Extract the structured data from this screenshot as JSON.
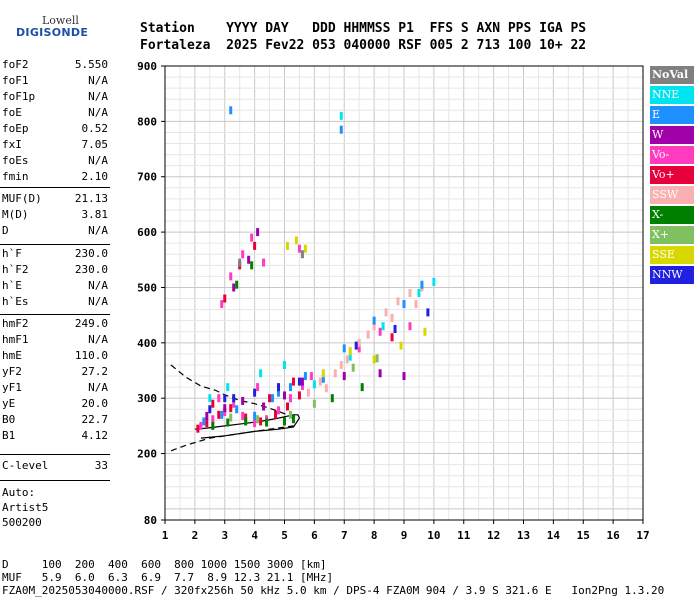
{
  "logo": {
    "line1": "Lowell",
    "line2": "DIGISONDE"
  },
  "header": {
    "line1": "Station    YYYY DAY   DDD HHMMSS P1  FFS S AXN PPS IGA PS",
    "line2": "Fortaleza  2025 Fev22 053 040000 RSF 005 2 713 100 10+ 22"
  },
  "params": {
    "group1": [
      {
        "name": "foF2",
        "value": "5.550"
      },
      {
        "name": "foF1",
        "value": "N/A"
      },
      {
        "name": "foF1p",
        "value": "N/A"
      },
      {
        "name": "foE",
        "value": "N/A"
      },
      {
        "name": "foEp",
        "value": "0.52"
      },
      {
        "name": "fxI",
        "value": "7.05"
      },
      {
        "name": "foEs",
        "value": "N/A"
      },
      {
        "name": "fmin",
        "value": "2.10"
      }
    ],
    "group2": [
      {
        "name": "MUF(D)",
        "value": "21.13"
      },
      {
        "name": "M(D)",
        "value": "3.81"
      },
      {
        "name": "D",
        "value": "N/A"
      }
    ],
    "group3": [
      {
        "name": "h`F",
        "value": "230.0"
      },
      {
        "name": "h`F2",
        "value": "230.0"
      },
      {
        "name": "h`E",
        "value": "N/A"
      },
      {
        "name": "h`Es",
        "value": "N/A"
      }
    ],
    "group4": [
      {
        "name": "hmF2",
        "value": "249.0"
      },
      {
        "name": "hmF1",
        "value": "N/A"
      },
      {
        "name": "hmE",
        "value": "110.0"
      },
      {
        "name": "yF2",
        "value": "27.2"
      },
      {
        "name": "yF1",
        "value": "N/A"
      },
      {
        "name": "yE",
        "value": "20.0"
      },
      {
        "name": "B0",
        "value": "22.7"
      },
      {
        "name": "B1",
        "value": "4.12"
      }
    ],
    "group5": [
      {
        "name": "C-level",
        "value": "33"
      }
    ],
    "auto": [
      "Auto:",
      "Artist5",
      "500200"
    ]
  },
  "legend": [
    {
      "label": "NoVal",
      "color": "#808080"
    },
    {
      "label": "NNE",
      "color": "#00e4f0"
    },
    {
      "label": "E",
      "color": "#1e90ff"
    },
    {
      "label": "W",
      "color": "#a000a8"
    },
    {
      "label": "Vo-",
      "color": "#ff3cc0"
    },
    {
      "label": "Vo+",
      "color": "#e8003c"
    },
    {
      "label": "SSW",
      "color": "#f8b0b0"
    },
    {
      "label": "X-",
      "color": "#008000"
    },
    {
      "label": "X+",
      "color": "#80c060"
    },
    {
      "label": "SSE",
      "color": "#d8d800"
    },
    {
      "label": "NNW",
      "color": "#2020e0"
    }
  ],
  "footer": {
    "line1": "D     100  200  400  600  800 1000 1500 3000 [km]",
    "line2": "MUF   5.9  6.0  6.3  6.9  7.7  8.9 12.3 21.1 [MHz]",
    "line3": "FZA0M_2025053040000.RSF / 320fx256h 50 kHz 5.0 km / DPS-4 FZA0M 904 / 3.9 S 321.6 E   Ion2Png 1.3.20"
  },
  "chart_data": {
    "type": "scatter",
    "xlim": [
      1,
      17
    ],
    "ylim": [
      80,
      900
    ],
    "x_ticks": [
      "1",
      "2",
      "3",
      "4",
      "5",
      "6",
      "7",
      "8",
      "9",
      "10",
      "11",
      "12",
      "13",
      "14",
      "15",
      "16",
      "17"
    ],
    "y_ticks": [
      "80",
      "200",
      "300",
      "400",
      "500",
      "600",
      "700",
      "800",
      "900"
    ],
    "grid": true,
    "series": [
      {
        "name": "Vo-",
        "color": "#ff3cc0",
        "points": [
          [
            2.2,
            250
          ],
          [
            2.6,
            262
          ],
          [
            3.0,
            275
          ],
          [
            3.3,
            290
          ],
          [
            3.6,
            268
          ],
          [
            4.0,
            255
          ],
          [
            4.4,
            262
          ],
          [
            4.8,
            278
          ],
          [
            5.2,
            300
          ],
          [
            5.6,
            322
          ],
          [
            2.9,
            470
          ],
          [
            3.2,
            520
          ],
          [
            3.6,
            560
          ],
          [
            3.9,
            590
          ],
          [
            4.3,
            545
          ],
          [
            5.5,
            570
          ],
          [
            7.5,
            390
          ],
          [
            8.2,
            420
          ],
          [
            9.2,
            430
          ],
          [
            2.8,
            300
          ],
          [
            4.1,
            320
          ],
          [
            5.9,
            340
          ]
        ]
      },
      {
        "name": "Vo+",
        "color": "#e8003c",
        "points": [
          [
            2.1,
            245
          ],
          [
            2.4,
            255
          ],
          [
            2.8,
            270
          ],
          [
            3.2,
            282
          ],
          [
            3.7,
            265
          ],
          [
            4.2,
            258
          ],
          [
            4.7,
            270
          ],
          [
            5.1,
            285
          ],
          [
            5.5,
            305
          ],
          [
            3.0,
            480
          ],
          [
            3.5,
            540
          ],
          [
            4.0,
            575
          ],
          [
            8.6,
            410
          ],
          [
            2.6,
            290
          ],
          [
            4.5,
            300
          ],
          [
            5.3,
            330
          ]
        ]
      },
      {
        "name": "SSW",
        "color": "#f8b0b0",
        "points": [
          [
            6.2,
            330
          ],
          [
            6.7,
            345
          ],
          [
            7.1,
            370
          ],
          [
            7.5,
            400
          ],
          [
            8.0,
            430
          ],
          [
            8.4,
            455
          ],
          [
            8.8,
            475
          ],
          [
            9.2,
            490
          ],
          [
            9.6,
            500
          ],
          [
            6.9,
            360
          ],
          [
            7.8,
            415
          ],
          [
            8.6,
            445
          ],
          [
            9.4,
            470
          ],
          [
            5.8,
            310
          ],
          [
            6.4,
            318
          ]
        ]
      },
      {
        "name": "E",
        "color": "#1e90ff",
        "points": [
          [
            2.3,
            258
          ],
          [
            2.9,
            270
          ],
          [
            3.4,
            280
          ],
          [
            4.0,
            268
          ],
          [
            4.6,
            300
          ],
          [
            5.2,
            320
          ],
          [
            5.7,
            340
          ],
          [
            6.3,
            335
          ],
          [
            7.0,
            390
          ],
          [
            8.0,
            440
          ],
          [
            9.0,
            470
          ],
          [
            9.6,
            505
          ],
          [
            6.9,
            785
          ],
          [
            3.2,
            820
          ],
          [
            4.8,
            310
          ]
        ]
      },
      {
        "name": "NNE",
        "color": "#00e4f0",
        "points": [
          [
            2.5,
            300
          ],
          [
            3.1,
            320
          ],
          [
            4.2,
            345
          ],
          [
            5.0,
            360
          ],
          [
            6.0,
            325
          ],
          [
            7.2,
            375
          ],
          [
            8.3,
            430
          ],
          [
            9.5,
            490
          ],
          [
            10.0,
            510
          ],
          [
            6.9,
            810
          ]
        ]
      },
      {
        "name": "W",
        "color": "#a000a8",
        "points": [
          [
            2.4,
            268
          ],
          [
            3.0,
            282
          ],
          [
            3.6,
            295
          ],
          [
            4.3,
            285
          ],
          [
            5.0,
            305
          ],
          [
            5.6,
            330
          ],
          [
            7.0,
            340
          ],
          [
            8.2,
            345
          ],
          [
            9.0,
            340
          ],
          [
            3.3,
            500
          ],
          [
            3.8,
            550
          ],
          [
            4.1,
            600
          ]
        ]
      },
      {
        "name": "X-",
        "color": "#008000",
        "points": [
          [
            2.6,
            250
          ],
          [
            3.1,
            256
          ],
          [
            3.7,
            258
          ],
          [
            4.4,
            256
          ],
          [
            5.0,
            258
          ],
          [
            5.3,
            262
          ],
          [
            6.6,
            300
          ],
          [
            7.6,
            320
          ],
          [
            3.4,
            505
          ],
          [
            3.9,
            540
          ]
        ]
      },
      {
        "name": "X+",
        "color": "#80c060",
        "points": [
          [
            3.2,
            265
          ],
          [
            4.1,
            262
          ],
          [
            5.2,
            270
          ],
          [
            6.0,
            290
          ],
          [
            7.3,
            355
          ],
          [
            8.1,
            372
          ]
        ]
      },
      {
        "name": "SSE",
        "color": "#d8d800",
        "points": [
          [
            5.1,
            575
          ],
          [
            5.4,
            585
          ],
          [
            5.7,
            570
          ],
          [
            7.2,
            385
          ],
          [
            8.0,
            370
          ],
          [
            8.9,
            395
          ],
          [
            9.7,
            420
          ],
          [
            6.3,
            345
          ]
        ]
      },
      {
        "name": "NNW",
        "color": "#2020e0",
        "points": [
          [
            2.5,
            280
          ],
          [
            3.3,
            300
          ],
          [
            4.0,
            310
          ],
          [
            4.8,
            320
          ],
          [
            5.5,
            330
          ],
          [
            7.4,
            395
          ],
          [
            8.7,
            425
          ],
          [
            9.8,
            455
          ],
          [
            3.0,
            300
          ]
        ]
      },
      {
        "name": "NoVal",
        "color": "#808080",
        "points": [
          [
            3.5,
            545
          ],
          [
            5.6,
            560
          ]
        ]
      }
    ],
    "trace_solid": [
      [
        2.2,
        228
      ],
      [
        3.0,
        232
      ],
      [
        4.0,
        240
      ],
      [
        4.8,
        244
      ],
      [
        5.3,
        248
      ],
      [
        5.4,
        256
      ],
      [
        5.5,
        264
      ],
      [
        5.45,
        270
      ],
      [
        5.3,
        270
      ],
      [
        4.8,
        264
      ],
      [
        4.2,
        258
      ],
      [
        3.6,
        254
      ],
      [
        3.0,
        250
      ],
      [
        2.4,
        246
      ],
      [
        2.0,
        244
      ]
    ],
    "trace_dashed": [
      [
        1.2,
        360
      ],
      [
        1.7,
        338
      ],
      [
        2.2,
        322
      ],
      [
        2.7,
        314
      ],
      [
        3.0,
        306
      ],
      [
        3.5,
        296
      ],
      [
        4.0,
        290
      ],
      [
        4.5,
        282
      ],
      [
        5.0,
        272
      ],
      [
        5.4,
        265
      ]
    ],
    "trace_lower": [
      [
        1.2,
        205
      ],
      [
        1.7,
        215
      ],
      [
        2.5,
        228
      ],
      [
        3.5,
        236
      ],
      [
        4.5,
        244
      ],
      [
        5.3,
        250
      ]
    ]
  }
}
